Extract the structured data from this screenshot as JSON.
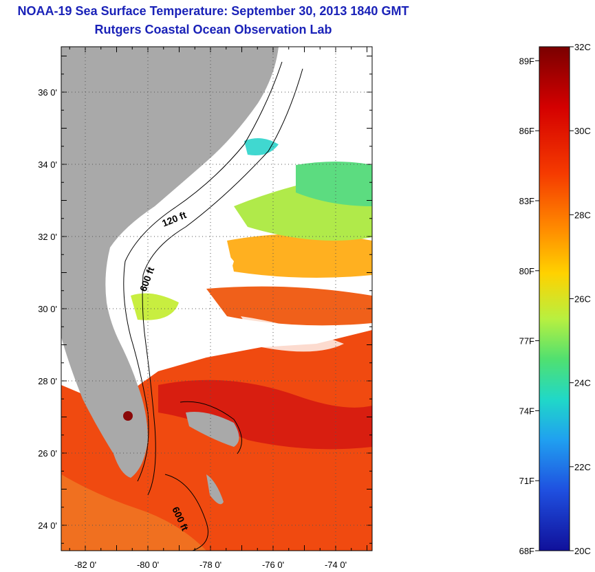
{
  "header": {
    "title": "NOAA-19 Sea Surface Temperature:  September 30, 2013 1840 GMT",
    "subtitle": "Rutgers Coastal Ocean Observation Lab"
  },
  "map": {
    "lat_ticks": [
      {
        "lat": 36,
        "label": "36 0'"
      },
      {
        "lat": 34,
        "label": "34 0'"
      },
      {
        "lat": 32,
        "label": "32 0'"
      },
      {
        "lat": 30,
        "label": "30 0'"
      },
      {
        "lat": 28,
        "label": "28 0'"
      },
      {
        "lat": 26,
        "label": "26 0'"
      },
      {
        "lat": 24,
        "label": "24 0'"
      }
    ],
    "lon_ticks": [
      {
        "lon": -82,
        "label": "-82 0'"
      },
      {
        "lon": -80,
        "label": "-80 0'"
      },
      {
        "lon": -78,
        "label": "-78 0'"
      },
      {
        "lon": -76,
        "label": "-76 0'"
      },
      {
        "lon": -74,
        "label": "-74 0'"
      }
    ],
    "contour_labels": [
      {
        "name": "contour-label-120ft",
        "text": "120 ft"
      },
      {
        "name": "contour-label-600ft-north",
        "text": "600 ft"
      },
      {
        "name": "contour-label-600ft-south",
        "text": "600 ft"
      }
    ]
  },
  "colorbar": {
    "min_c": 20,
    "max_c": 32,
    "celsius_labels": [
      "32C",
      "30C",
      "28C",
      "26C",
      "24C",
      "22C",
      "20C"
    ],
    "fahrenheit_labels": [
      "89F",
      "86F",
      "83F",
      "80F",
      "77F",
      "74F",
      "71F",
      "68F"
    ],
    "colors": [
      "#7a0000",
      "#d40000",
      "#f53a00",
      "#ff8a00",
      "#ffd200",
      "#b8f040",
      "#50e070",
      "#20d8c8",
      "#20a0f0",
      "#1f50e0",
      "#10109a"
    ]
  }
}
